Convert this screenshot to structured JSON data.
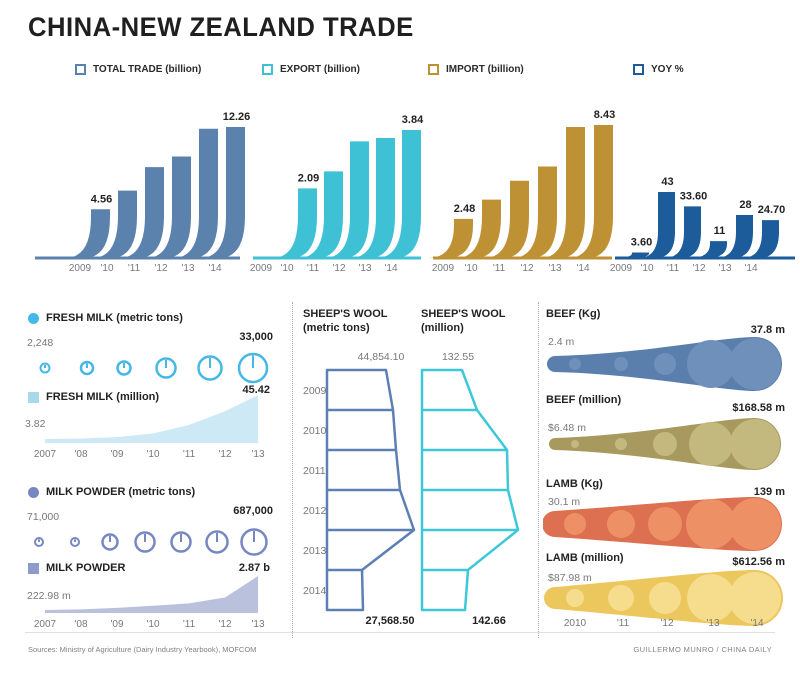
{
  "title": "CHINA-NEW ZEALAND TRADE",
  "legend": {
    "items": [
      {
        "label": "TOTAL TRADE (billion)",
        "color": "#5b81ad"
      },
      {
        "label": "EXPORT (billion)",
        "color": "#3fc1d5"
      },
      {
        "label": "IMPORT (billion)",
        "color": "#bd9134"
      },
      {
        "label": "YOY %",
        "color": "#1d5c9b"
      }
    ]
  },
  "colors": {
    "total_trade": "#5b81ad",
    "export": "#3fc1d5",
    "import": "#bd9134",
    "yoy": "#1d5c9b",
    "fresh_milk": "#45b8e8",
    "fresh_milk_area": "#cde9f5",
    "fresh_milk_swatch": "#a8d8ec",
    "milk_powder": "#7787c2",
    "milk_powder_area": "#b9c1dd",
    "wool_tons": "#5c80b4",
    "wool_million": "#3ec7d9",
    "text_dark": "#222222",
    "text_gray": "#77787b",
    "divider": "#a7a9ac"
  },
  "chart_data": [
    {
      "id": "total_trade",
      "type": "bar",
      "title": "TOTAL TRADE (billion)",
      "categories": [
        "2009",
        "'10",
        "'11",
        "'12",
        "'13",
        "'14"
      ],
      "values": [
        4.56,
        6.3,
        8.5,
        9.5,
        12.1,
        12.26
      ],
      "labels": [
        "4.56",
        null,
        null,
        null,
        null,
        "12.26"
      ],
      "ylim": [
        0,
        12.26
      ],
      "color": "#5b81ad"
    },
    {
      "id": "export",
      "type": "bar",
      "title": "EXPORT (billion)",
      "categories": [
        "2009",
        "'10",
        "'11",
        "'12",
        "'13",
        "'14"
      ],
      "values": [
        null,
        2.09,
        2.6,
        3.5,
        3.6,
        3.84
      ],
      "labels": [
        null,
        "2.09",
        null,
        null,
        null,
        "3.84"
      ],
      "ylim": [
        0,
        3.84
      ],
      "color": "#3fc1d5"
    },
    {
      "id": "import",
      "type": "bar",
      "title": "IMPORT (billion)",
      "categories": [
        "2009",
        "'10",
        "'11",
        "'12",
        "'13",
        "'14"
      ],
      "values": [
        2.48,
        3.7,
        4.9,
        5.8,
        8.3,
        8.43
      ],
      "labels": [
        "2.48",
        null,
        null,
        null,
        null,
        "8.43"
      ],
      "ylim": [
        0,
        8.43
      ],
      "color": "#bd9134"
    },
    {
      "id": "yoy",
      "type": "bar",
      "title": "YOY %",
      "categories": [
        "2009",
        "'10",
        "'11",
        "'12",
        "'13",
        "'14"
      ],
      "values": [
        3.6,
        43,
        33.6,
        11,
        28,
        24.7
      ],
      "labels": [
        "3.60",
        "43",
        "33.60",
        "11",
        "28",
        "24.70"
      ],
      "ylim": [
        0,
        43
      ],
      "color": "#1d5c9b"
    },
    {
      "id": "fresh_milk_tons",
      "type": "icon-scale",
      "title": "FRESH MILK (metric tons)",
      "bullet_shape": "circle",
      "bullet_color": "#45b8e8",
      "first_label": "2,248",
      "last_label": "33,000",
      "relative_sizes": [
        4.5,
        6,
        6.5,
        9.5,
        11.5,
        14
      ],
      "color": "#45b8e8"
    },
    {
      "id": "fresh_milk_million",
      "type": "area",
      "title": "FRESH MILK (million)",
      "bullet_shape": "square",
      "bullet_color": "#a8d8ec",
      "categories": [
        "2007",
        "'08",
        "'09",
        "'10",
        "'11",
        "'12",
        "'13"
      ],
      "values": [
        3.82,
        4.3,
        5.6,
        9,
        17,
        30,
        45.42
      ],
      "first_label": "3.82",
      "last_label": "45.42",
      "ylim": [
        0,
        45.42
      ],
      "color": "#cde9f5"
    },
    {
      "id": "milk_powder_tons",
      "type": "icon-scale",
      "title": "MILK POWDER (metric tons)",
      "bullet_shape": "circle",
      "bullet_color": "#7787c2",
      "first_label": "71,000",
      "last_label": "687,000",
      "relative_sizes": [
        4,
        4,
        7.5,
        9.5,
        9.5,
        10.5,
        12.5
      ],
      "color": "#7787c2"
    },
    {
      "id": "milk_powder_million",
      "type": "area",
      "title": "MILK POWDER",
      "bullet_shape": "square",
      "bullet_color": "#8d9bcb",
      "categories": [
        "2007",
        "'08",
        "'09",
        "'10",
        "'11",
        "'12",
        "'13"
      ],
      "values": [
        0.223,
        0.28,
        0.4,
        0.56,
        0.75,
        1.2,
        2.87
      ],
      "first_label": "222.98 m",
      "last_label": "2.87 b",
      "ylim": [
        0,
        2.87
      ],
      "color": "#b9c1dd"
    },
    {
      "id": "wool_tons",
      "type": "funnel",
      "header": "SHEEP'S WOOL",
      "subheader": "(metric tons)",
      "categories": [
        "2009",
        "2010",
        "2011",
        "2012",
        "2013",
        "2014"
      ],
      "top_label": "44,854.10",
      "bottom_label": "27,568.50",
      "boundary_widths": [
        59,
        66,
        69,
        73,
        87,
        35,
        36
      ],
      "color": "#5c80b4"
    },
    {
      "id": "wool_million",
      "type": "funnel",
      "header": "SHEEP'S WOOL",
      "subheader": "(million)",
      "categories": [
        "2009",
        "2010",
        "2011",
        "2012",
        "2013",
        "2014"
      ],
      "top_label": "132.55",
      "bottom_label": "142.66",
      "boundary_widths": [
        40,
        55,
        85,
        86,
        96,
        46,
        43
      ],
      "color": "#3ec7d9"
    },
    {
      "id": "beef_kg",
      "type": "horn",
      "title": "BEEF (Kg)",
      "categories": [
        "2010",
        "'11",
        "'12",
        "'13",
        "'14"
      ],
      "start_label": "2.4 m",
      "end_label": "37.8 m",
      "start_size": 8,
      "end_size": 27,
      "bubble_radii": [
        6,
        7,
        11,
        24,
        26
      ],
      "body_color": "#5b7fad",
      "bubble_color": "#6f90ba",
      "taper": 0.12
    },
    {
      "id": "beef_million",
      "type": "horn",
      "title": "BEEF (million)",
      "categories": [
        "2010",
        "'11",
        "'12",
        "'13",
        "'14"
      ],
      "start_label": "$6.48 m",
      "end_label": "$168.58 m",
      "start_size": 6,
      "end_size": 26,
      "bubble_radii": [
        4,
        6,
        12,
        22,
        25
      ],
      "body_color": "#a89a5e",
      "bubble_color": "#c3b87e",
      "taper": 0.15
    },
    {
      "id": "lamb_kg",
      "type": "horn",
      "title": "LAMB (Kg)",
      "categories": [
        "2010",
        "'11",
        "'12",
        "'13",
        "'14"
      ],
      "start_label": "30.1 m",
      "end_label": "139 m",
      "start_size": 13,
      "end_size": 27,
      "bubble_radii": [
        11,
        14,
        17,
        25,
        26
      ],
      "body_color": "#dc7050",
      "bubble_color": "#ee9065",
      "taper": 0.45
    },
    {
      "id": "lamb_million",
      "type": "horn",
      "title": "LAMB (million)",
      "categories": [
        "2010",
        "'11",
        "'12",
        "'13",
        "'14"
      ],
      "start_label": "$87.98 m",
      "end_label": "$612.56 m",
      "start_size": 11,
      "end_size": 28,
      "bubble_radii": [
        9,
        13,
        16,
        24,
        26
      ],
      "body_color": "#ecc75e",
      "bubble_color": "#f5dd8d",
      "taper": 0.45
    }
  ],
  "footer": {
    "source": "Sources: Ministry of Agriculture (Dairy Industry Yearbook), MOFCOM",
    "credit": "GUILLERMO MUNRO / CHINA DAILY"
  }
}
